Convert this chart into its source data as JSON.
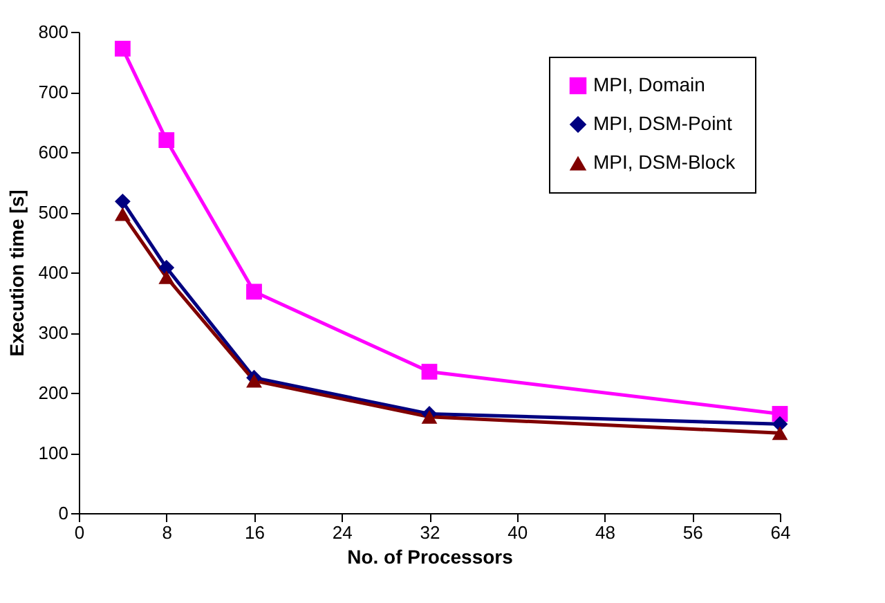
{
  "chart_data": {
    "type": "line",
    "xlabel": "No. of Processors",
    "ylabel": "Execution time [s]",
    "x": [
      4,
      8,
      16,
      32,
      64
    ],
    "series": [
      {
        "name": "MPI, Domain",
        "color": "#ff00ff",
        "marker": "square",
        "values": [
          772,
          620,
          368,
          235,
          165
        ]
      },
      {
        "name": "MPI, DSM-Point",
        "color": "#000080",
        "marker": "diamond",
        "values": [
          518,
          408,
          225,
          165,
          148
        ]
      },
      {
        "name": "MPI, DSM-Block",
        "color": "#800000",
        "marker": "triangle",
        "values": [
          497,
          392,
          220,
          160,
          133
        ]
      }
    ],
    "xlim": [
      0,
      64
    ],
    "xticks": [
      0,
      8,
      16,
      24,
      32,
      40,
      48,
      56,
      64
    ],
    "ylim": [
      0,
      800
    ],
    "yticks": [
      0,
      100,
      200,
      300,
      400,
      500,
      600,
      700,
      800
    ],
    "grid": false,
    "legend": "top right",
    "line_style": "solid"
  }
}
